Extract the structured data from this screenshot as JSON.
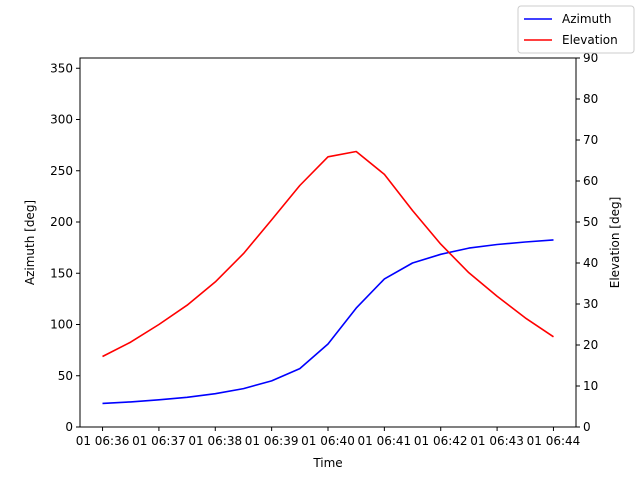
{
  "chart_data": {
    "type": "line",
    "xlabel": "Time",
    "y_left_label": "Azimuth [deg]",
    "y_right_label": "Elevation [deg]",
    "x_ticks": [
      "01 06:36",
      "01 06:37",
      "01 06:38",
      "01 06:39",
      "01 06:40",
      "01 06:41",
      "01 06:42",
      "01 06:43",
      "01 06:44"
    ],
    "x_minutes": [
      0,
      0.5,
      1,
      1.5,
      2,
      2.5,
      3,
      3.5,
      4,
      4.5,
      5,
      5.5,
      6,
      6.5,
      7,
      7.5,
      8
    ],
    "y_left_range": [
      0,
      360
    ],
    "y_left_ticks": [
      0,
      50,
      100,
      150,
      200,
      250,
      300,
      350
    ],
    "y_right_range": [
      0,
      90
    ],
    "y_right_ticks": [
      0,
      10,
      20,
      30,
      40,
      50,
      60,
      70,
      80,
      90
    ],
    "grid": false,
    "legend": "top-right",
    "series": [
      {
        "name": "Azimuth",
        "axis": "left",
        "color": "#0000ff",
        "values": [
          23,
          24.5,
          26.5,
          29,
          32.5,
          37.5,
          45,
          57,
          81,
          116,
          144.5,
          160,
          168.5,
          174.5,
          178,
          180.5,
          182.5
        ]
      },
      {
        "name": "Elevation",
        "axis": "right",
        "color": "#ff0000",
        "values": [
          17.2,
          20.7,
          25,
          29.7,
          35.4,
          42.3,
          50.5,
          58.9,
          65.9,
          67.2,
          61.6,
          52.8,
          44.6,
          37.6,
          31.9,
          26.6,
          22
        ]
      }
    ]
  }
}
